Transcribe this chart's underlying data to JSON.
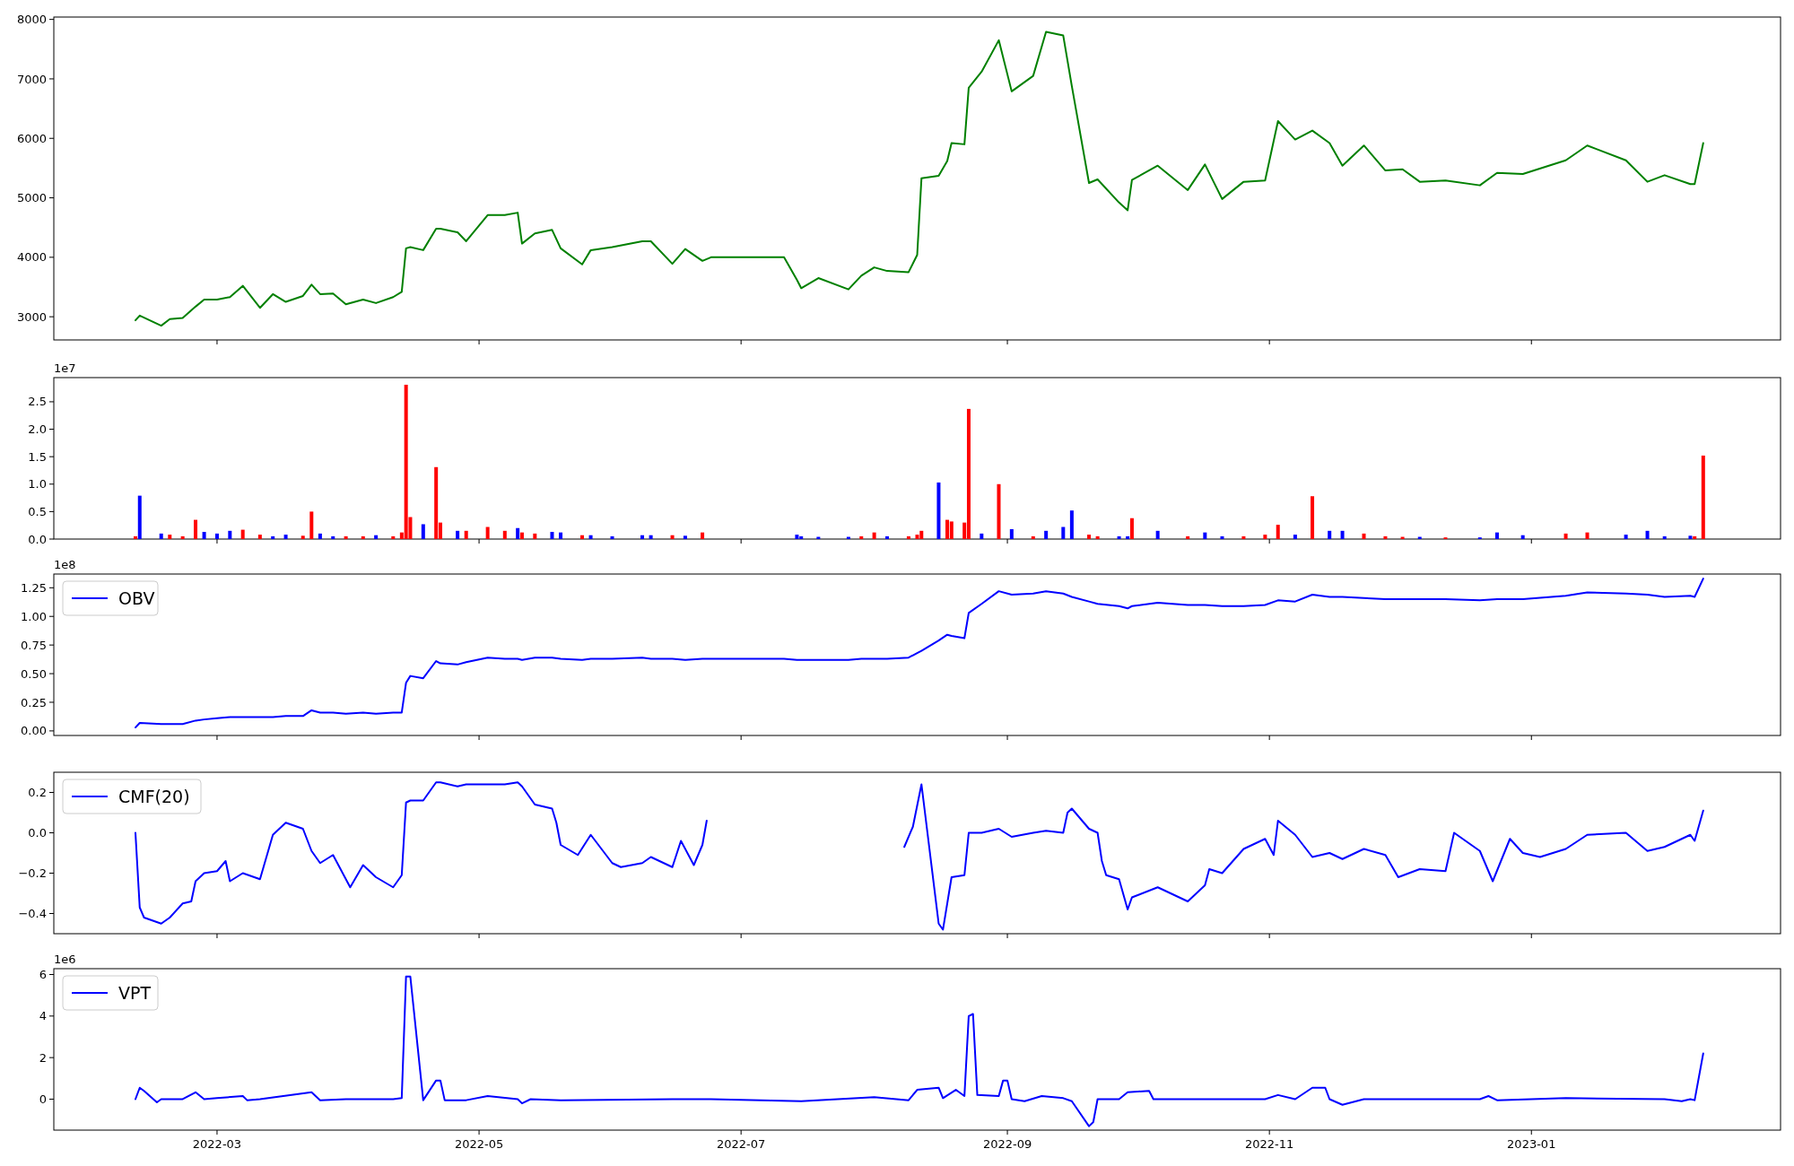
{
  "chart_data": [
    {
      "type": "line",
      "xlim": [
        "2022-01-22",
        "2023-02-28"
      ],
      "xticks": [
        "2022-03-01",
        "2022-05-01",
        "2022-07-01",
        "2022-09-01",
        "2022-11-01",
        "2023-01-01"
      ],
      "ylim": [
        2610,
        8040
      ],
      "yticks": [
        3000,
        4000,
        5000,
        6000,
        7000,
        8000
      ],
      "tick_labels": "y",
      "x": [
        "2022-02-10",
        "2022-02-11",
        "2022-02-16",
        "2022-02-18",
        "2022-02-21",
        "2022-02-24",
        "2022-02-26",
        "2022-03-01",
        "2022-03-04",
        "2022-03-07",
        "2022-03-11",
        "2022-03-14",
        "2022-03-17",
        "2022-03-21",
        "2022-03-23",
        "2022-03-25",
        "2022-03-28",
        "2022-03-31",
        "2022-04-04",
        "2022-04-07",
        "2022-04-11",
        "2022-04-13",
        "2022-04-14",
        "2022-04-15",
        "2022-04-18",
        "2022-04-21",
        "2022-04-22",
        "2022-04-26",
        "2022-04-28",
        "2022-05-03",
        "2022-05-07",
        "2022-05-10",
        "2022-05-11",
        "2022-05-14",
        "2022-05-18",
        "2022-05-20",
        "2022-05-25",
        "2022-05-27",
        "2022-06-01",
        "2022-06-08",
        "2022-06-10",
        "2022-06-15",
        "2022-06-18",
        "2022-06-22",
        "2022-06-24",
        "2022-07-01",
        "2022-07-11",
        "2022-07-14",
        "2022-07-15",
        "2022-07-19",
        "2022-07-26",
        "2022-07-29",
        "2022-08-01",
        "2022-08-04",
        "2022-08-09",
        "2022-08-11",
        "2022-08-12",
        "2022-08-16",
        "2022-08-18",
        "2022-08-19",
        "2022-08-22",
        "2022-08-23",
        "2022-08-26",
        "2022-08-30",
        "2022-09-02",
        "2022-09-07",
        "2022-09-10",
        "2022-09-14",
        "2022-09-16",
        "2022-09-20",
        "2022-09-22",
        "2022-09-27",
        "2022-09-29",
        "2022-09-30",
        "2022-10-06",
        "2022-10-13",
        "2022-10-17",
        "2022-10-21",
        "2022-10-26",
        "2022-10-31",
        "2022-11-03",
        "2022-11-07",
        "2022-11-11",
        "2022-11-15",
        "2022-11-18",
        "2022-11-23",
        "2022-11-28",
        "2022-12-02",
        "2022-12-06",
        "2022-12-12",
        "2022-12-20",
        "2022-12-24",
        "2022-12-30",
        "2023-01-09",
        "2023-01-14",
        "2023-01-23",
        "2023-01-28",
        "2023-02-01",
        "2023-02-07",
        "2023-02-08",
        "2023-02-10"
      ],
      "series": [
        {
          "color": "#008000",
          "values": [
            2940,
            3020,
            2850,
            2960,
            2980,
            3170,
            3290,
            3290,
            3330,
            3520,
            3150,
            3380,
            3250,
            3350,
            3540,
            3380,
            3390,
            3210,
            3290,
            3230,
            3330,
            3420,
            4150,
            4170,
            4120,
            4480,
            4480,
            4420,
            4270,
            4710,
            4710,
            4750,
            4230,
            4400,
            4460,
            4150,
            3880,
            4120,
            4170,
            4270,
            4270,
            3890,
            4140,
            3940,
            4000,
            4000,
            4000,
            3620,
            3480,
            3650,
            3460,
            3690,
            3830,
            3770,
            3750,
            4040,
            5330,
            5370,
            5620,
            5920,
            5900,
            6850,
            7120,
            7650,
            6790,
            7050,
            7790,
            7730,
            6880,
            5250,
            5310,
            4920,
            4790,
            5300,
            5540,
            5130,
            5560,
            4980,
            5270,
            5290,
            6290,
            5980,
            6130,
            5920,
            5540,
            5880,
            5460,
            5480,
            5270,
            5290,
            5210,
            5420,
            5400,
            5630,
            5880,
            5630,
            5270,
            5380,
            5230,
            5230,
            5920
          ]
        }
      ]
    },
    {
      "type": "bar",
      "annotations": [
        "1e7"
      ],
      "xlim": [
        "2022-01-22",
        "2023-02-28"
      ],
      "xticks": [
        "2022-03-01",
        "2022-05-01",
        "2022-07-01",
        "2022-09-01",
        "2022-11-01",
        "2023-01-01"
      ],
      "ylim": [
        0,
        2.94
      ],
      "yticks": [
        {
          "value": 0,
          "label": "0.0"
        },
        {
          "value": 0.5,
          "label": "0.5"
        },
        {
          "value": 1,
          "label": "1.0"
        },
        {
          "value": 1.5,
          "label": "1.5"
        },
        {
          "value": 2,
          "label": "2.0"
        },
        {
          "value": 2.5,
          "label": "2.5"
        }
      ],
      "tick_labels": "y",
      "x": [
        "2022-02-10",
        "2022-02-11",
        "2022-02-16",
        "2022-02-18",
        "2022-02-21",
        "2022-02-24",
        "2022-02-26",
        "2022-03-01",
        "2022-03-04",
        "2022-03-07",
        "2022-03-11",
        "2022-03-14",
        "2022-03-17",
        "2022-03-21",
        "2022-03-23",
        "2022-03-25",
        "2022-03-28",
        "2022-03-31",
        "2022-04-04",
        "2022-04-07",
        "2022-04-11",
        "2022-04-13",
        "2022-04-14",
        "2022-04-15",
        "2022-04-18",
        "2022-04-21",
        "2022-04-22",
        "2022-04-26",
        "2022-04-28",
        "2022-05-03",
        "2022-05-07",
        "2022-05-10",
        "2022-05-11",
        "2022-05-14",
        "2022-05-18",
        "2022-05-20",
        "2022-05-25",
        "2022-05-27",
        "2022-06-01",
        "2022-06-08",
        "2022-06-10",
        "2022-06-15",
        "2022-06-18",
        "2022-06-22",
        "2022-07-14",
        "2022-07-15",
        "2022-07-19",
        "2022-07-26",
        "2022-07-29",
        "2022-08-01",
        "2022-08-04",
        "2022-08-09",
        "2022-08-11",
        "2022-08-12",
        "2022-08-16",
        "2022-08-18",
        "2022-08-19",
        "2022-08-22",
        "2022-08-23",
        "2022-08-26",
        "2022-08-30",
        "2022-09-02",
        "2022-09-07",
        "2022-09-10",
        "2022-09-14",
        "2022-09-16",
        "2022-09-20",
        "2022-09-22",
        "2022-09-27",
        "2022-09-29",
        "2022-09-30",
        "2022-10-06",
        "2022-10-13",
        "2022-10-17",
        "2022-10-21",
        "2022-10-26",
        "2022-10-31",
        "2022-11-03",
        "2022-11-07",
        "2022-11-11",
        "2022-11-15",
        "2022-11-18",
        "2022-11-23",
        "2022-11-28",
        "2022-12-02",
        "2022-12-06",
        "2022-12-12",
        "2022-12-20",
        "2022-12-24",
        "2022-12-30",
        "2023-01-09",
        "2023-01-14",
        "2023-01-23",
        "2023-01-28",
        "2023-02-01",
        "2023-02-07",
        "2023-02-08",
        "2023-02-10"
      ],
      "values": [
        0.05,
        0.79,
        0.1,
        0.08,
        0.05,
        0.35,
        0.13,
        0.1,
        0.15,
        0.17,
        0.08,
        0.05,
        0.08,
        0.06,
        0.5,
        0.1,
        0.05,
        0.05,
        0.05,
        0.07,
        0.05,
        0.12,
        2.81,
        0.4,
        0.27,
        1.31,
        0.3,
        0.15,
        0.15,
        0.22,
        0.15,
        0.2,
        0.12,
        0.1,
        0.13,
        0.12,
        0.07,
        0.07,
        0.05,
        0.07,
        0.07,
        0.07,
        0.06,
        0.12,
        0.08,
        0.05,
        0.04,
        0.04,
        0.05,
        0.12,
        0.05,
        0.05,
        0.08,
        0.15,
        1.03,
        0.35,
        0.32,
        0.3,
        2.37,
        0.1,
        1.0,
        0.18,
        0.05,
        0.15,
        0.22,
        0.52,
        0.08,
        0.05,
        0.05,
        0.05,
        0.38,
        0.15,
        0.05,
        0.12,
        0.05,
        0.05,
        0.08,
        0.26,
        0.08,
        0.78,
        0.15,
        0.15,
        0.1,
        0.05,
        0.04,
        0.04,
        0.03,
        0.03,
        0.12,
        0.07,
        0.1,
        0.12,
        0.08,
        0.15,
        0.05,
        0.06,
        0.05,
        1.52
      ],
      "colors": [
        "#ff0000",
        "#0000ff",
        "#0000ff",
        "#ff0000",
        "#ff0000",
        "#ff0000",
        "#0000ff",
        "#0000ff",
        "#0000ff",
        "#ff0000",
        "#ff0000",
        "#0000ff",
        "#0000ff",
        "#ff0000",
        "#ff0000",
        "#0000ff",
        "#0000ff",
        "#ff0000",
        "#ff0000",
        "#0000ff",
        "#ff0000",
        "#ff0000",
        "#ff0000",
        "#ff0000",
        "#0000ff",
        "#ff0000",
        "#ff0000",
        "#0000ff",
        "#ff0000",
        "#ff0000",
        "#ff0000",
        "#0000ff",
        "#ff0000",
        "#ff0000",
        "#0000ff",
        "#0000ff",
        "#ff0000",
        "#0000ff",
        "#0000ff",
        "#0000ff",
        "#0000ff",
        "#ff0000",
        "#0000ff",
        "#ff0000",
        "#0000ff",
        "#0000ff",
        "#0000ff",
        "#0000ff",
        "#ff0000",
        "#ff0000",
        "#0000ff",
        "#ff0000",
        "#ff0000",
        "#ff0000",
        "#0000ff",
        "#ff0000",
        "#ff0000",
        "#ff0000",
        "#ff0000",
        "#0000ff",
        "#ff0000",
        "#0000ff",
        "#ff0000",
        "#0000ff",
        "#0000ff",
        "#0000ff",
        "#ff0000",
        "#ff0000",
        "#0000ff",
        "#0000ff",
        "#ff0000",
        "#0000ff",
        "#ff0000",
        "#0000ff",
        "#0000ff",
        "#ff0000",
        "#ff0000",
        "#ff0000",
        "#0000ff",
        "#ff0000",
        "#0000ff",
        "#0000ff",
        "#ff0000",
        "#ff0000",
        "#ff0000",
        "#0000ff",
        "#ff0000",
        "#0000ff",
        "#0000ff",
        "#0000ff",
        "#ff0000",
        "#ff0000",
        "#0000ff",
        "#0000ff",
        "#0000ff",
        "#0000ff",
        "#ff0000",
        "#ff0000"
      ]
    },
    {
      "type": "line",
      "annotations": [
        "1e8"
      ],
      "legend": "top left",
      "xlim": [
        "2022-01-22",
        "2023-02-28"
      ],
      "xticks": [
        "2022-03-01",
        "2022-05-01",
        "2022-07-01",
        "2022-09-01",
        "2022-11-01",
        "2023-01-01"
      ],
      "ylim": [
        -0.04,
        1.37
      ],
      "yticks": [
        {
          "value": 0,
          "label": "0.00"
        },
        {
          "value": 0.25,
          "label": "0.25"
        },
        {
          "value": 0.5,
          "label": "0.50"
        },
        {
          "value": 0.75,
          "label": "0.75"
        },
        {
          "value": 1,
          "label": "1.00"
        },
        {
          "value": 1.25,
          "label": "1.25"
        }
      ],
      "tick_labels": "y",
      "x": [
        "2022-02-10",
        "2022-02-11",
        "2022-02-16",
        "2022-02-18",
        "2022-02-21",
        "2022-02-24",
        "2022-02-26",
        "2022-03-01",
        "2022-03-04",
        "2022-03-07",
        "2022-03-11",
        "2022-03-14",
        "2022-03-17",
        "2022-03-21",
        "2022-03-23",
        "2022-03-25",
        "2022-03-28",
        "2022-03-31",
        "2022-04-04",
        "2022-04-07",
        "2022-04-11",
        "2022-04-13",
        "2022-04-14",
        "2022-04-15",
        "2022-04-18",
        "2022-04-21",
        "2022-04-22",
        "2022-04-26",
        "2022-04-28",
        "2022-05-03",
        "2022-05-07",
        "2022-05-10",
        "2022-05-11",
        "2022-05-14",
        "2022-05-18",
        "2022-05-20",
        "2022-05-25",
        "2022-05-27",
        "2022-06-01",
        "2022-06-08",
        "2022-06-10",
        "2022-06-15",
        "2022-06-18",
        "2022-06-22",
        "2022-06-24",
        "2022-07-01",
        "2022-07-11",
        "2022-07-14",
        "2022-07-15",
        "2022-07-19",
        "2022-07-26",
        "2022-07-29",
        "2022-08-01",
        "2022-08-04",
        "2022-08-09",
        "2022-08-11",
        "2022-08-12",
        "2022-08-16",
        "2022-08-18",
        "2022-08-19",
        "2022-08-22",
        "2022-08-23",
        "2022-08-26",
        "2022-08-30",
        "2022-09-02",
        "2022-09-07",
        "2022-09-10",
        "2022-09-14",
        "2022-09-16",
        "2022-09-20",
        "2022-09-22",
        "2022-09-27",
        "2022-09-29",
        "2022-09-30",
        "2022-10-06",
        "2022-10-13",
        "2022-10-17",
        "2022-10-21",
        "2022-10-26",
        "2022-10-31",
        "2022-11-03",
        "2022-11-07",
        "2022-11-11",
        "2022-11-15",
        "2022-11-18",
        "2022-11-23",
        "2022-11-28",
        "2022-12-02",
        "2022-12-06",
        "2022-12-12",
        "2022-12-20",
        "2022-12-24",
        "2022-12-30",
        "2023-01-09",
        "2023-01-14",
        "2023-01-23",
        "2023-01-28",
        "2023-02-01",
        "2023-02-07",
        "2023-02-08",
        "2023-02-10"
      ],
      "series": [
        {
          "name": "OBV",
          "color": "#0000ff",
          "values": [
            0.03,
            0.07,
            0.06,
            0.06,
            0.06,
            0.09,
            0.1,
            0.11,
            0.12,
            0.12,
            0.12,
            0.12,
            0.13,
            0.13,
            0.18,
            0.16,
            0.16,
            0.15,
            0.16,
            0.15,
            0.16,
            0.16,
            0.42,
            0.48,
            0.46,
            0.61,
            0.59,
            0.58,
            0.6,
            0.64,
            0.63,
            0.63,
            0.62,
            0.64,
            0.64,
            0.63,
            0.62,
            0.63,
            0.63,
            0.64,
            0.63,
            0.63,
            0.62,
            0.63,
            0.63,
            0.63,
            0.63,
            0.62,
            0.62,
            0.62,
            0.62,
            0.63,
            0.63,
            0.63,
            0.64,
            0.68,
            0.7,
            0.79,
            0.84,
            0.83,
            0.81,
            1.03,
            1.11,
            1.22,
            1.19,
            1.2,
            1.22,
            1.2,
            1.17,
            1.13,
            1.11,
            1.09,
            1.07,
            1.09,
            1.12,
            1.1,
            1.1,
            1.09,
            1.09,
            1.1,
            1.14,
            1.13,
            1.19,
            1.17,
            1.17,
            1.16,
            1.15,
            1.15,
            1.15,
            1.15,
            1.14,
            1.15,
            1.15,
            1.18,
            1.21,
            1.2,
            1.19,
            1.17,
            1.18,
            1.17,
            1.33
          ]
        }
      ]
    },
    {
      "type": "line",
      "legend": "top left",
      "xlim": [
        "2022-01-22",
        "2023-02-28"
      ],
      "xticks": [
        "2022-03-01",
        "2022-05-01",
        "2022-07-01",
        "2022-09-01",
        "2022-11-01",
        "2023-01-01"
      ],
      "ylim": [
        -0.5,
        0.3
      ],
      "yticks": [
        {
          "value": -0.4,
          "label": "−0.4"
        },
        {
          "value": -0.2,
          "label": "−0.2"
        },
        {
          "value": 0,
          "label": "0.0"
        },
        {
          "value": 0.2,
          "label": "0.2"
        }
      ],
      "tick_labels": "y",
      "x": [
        "2022-02-10",
        "2022-02-11",
        "2022-02-12",
        "2022-02-16",
        "2022-02-18",
        "2022-02-21",
        "2022-02-23",
        "2022-02-24",
        "2022-02-26",
        "2022-03-01",
        "2022-03-03",
        "2022-03-04",
        "2022-03-07",
        "2022-03-11",
        "2022-03-14",
        "2022-03-17",
        "2022-03-21",
        "2022-03-23",
        "2022-03-25",
        "2022-03-28",
        "2022-04-01",
        "2022-04-04",
        "2022-04-07",
        "2022-04-11",
        "2022-04-13",
        "2022-04-14",
        "2022-04-15",
        "2022-04-18",
        "2022-04-21",
        "2022-04-22",
        "2022-04-26",
        "2022-04-28",
        "2022-05-03",
        "2022-05-07",
        "2022-05-10",
        "2022-05-11",
        "2022-05-14",
        "2022-05-18",
        "2022-05-19",
        "2022-05-20",
        "2022-05-24",
        "2022-05-27",
        "2022-06-01",
        "2022-06-03",
        "2022-06-08",
        "2022-06-10",
        "2022-06-15",
        "2022-06-17",
        "2022-06-20",
        "2022-06-22",
        "2022-06-23",
        "2022-07-01",
        "2022-08-08",
        "2022-08-10",
        "2022-08-12",
        "2022-08-16",
        "2022-08-17",
        "2022-08-19",
        "2022-08-22",
        "2022-08-23",
        "2022-08-26",
        "2022-08-30",
        "2022-09-02",
        "2022-09-07",
        "2022-09-10",
        "2022-09-14",
        "2022-09-15",
        "2022-09-16",
        "2022-09-20",
        "2022-09-22",
        "2022-09-23",
        "2022-09-24",
        "2022-09-27",
        "2022-09-29",
        "2022-09-30",
        "2022-10-06",
        "2022-10-13",
        "2022-10-17",
        "2022-10-18",
        "2022-10-21",
        "2022-10-26",
        "2022-10-31",
        "2022-11-02",
        "2022-11-03",
        "2022-11-07",
        "2022-11-11",
        "2022-11-15",
        "2022-11-18",
        "2022-11-23",
        "2022-11-28",
        "2022-12-01",
        "2022-12-06",
        "2022-12-12",
        "2022-12-14",
        "2022-12-20",
        "2022-12-23",
        "2022-12-27",
        "2022-12-30",
        "2023-01-03",
        "2023-01-09",
        "2023-01-14",
        "2023-01-23",
        "2023-01-28",
        "2023-02-01",
        "2023-02-07",
        "2023-02-08",
        "2023-02-10"
      ],
      "series": [
        {
          "name": "CMF(20)",
          "color": "#0000ff",
          "values": [
            0,
            -0.37,
            -0.42,
            -0.45,
            -0.42,
            -0.35,
            -0.34,
            -0.24,
            -0.2,
            -0.19,
            -0.14,
            -0.24,
            -0.2,
            -0.23,
            -0.01,
            0.05,
            0.02,
            -0.09,
            -0.15,
            -0.11,
            -0.27,
            -0.16,
            -0.22,
            -0.27,
            -0.21,
            0.15,
            0.16,
            0.16,
            0.25,
            0.25,
            0.23,
            0.24,
            0.24,
            0.24,
            0.25,
            0.23,
            0.14,
            0.12,
            0.05,
            -0.06,
            -0.11,
            -0.01,
            -0.15,
            -0.17,
            -0.15,
            -0.12,
            -0.17,
            -0.04,
            -0.16,
            -0.06,
            0.06,
            null,
            -0.07,
            0.03,
            0.24,
            -0.45,
            -0.48,
            -0.22,
            -0.21,
            0,
            0,
            0.02,
            -0.02,
            0,
            0.01,
            0,
            0.1,
            0.12,
            0.02,
            0,
            -0.14,
            -0.21,
            -0.23,
            -0.38,
            -0.32,
            -0.27,
            -0.34,
            -0.26,
            -0.18,
            -0.2,
            -0.08,
            -0.03,
            -0.11,
            0.06,
            -0.01,
            -0.12,
            -0.1,
            -0.13,
            -0.08,
            -0.11,
            -0.22,
            -0.18,
            -0.19,
            0,
            -0.09,
            -0.24,
            -0.03,
            -0.1,
            -0.12,
            -0.08,
            -0.01,
            0,
            -0.09,
            -0.07,
            -0.01,
            -0.04,
            0.11
          ]
        }
      ]
    },
    {
      "type": "line",
      "annotations": [
        "1e6"
      ],
      "legend": "top left",
      "xlim": [
        "2022-01-22",
        "2023-02-28"
      ],
      "xticks": [
        {
          "value": "2022-03-01",
          "label": "2022-03"
        },
        {
          "value": "2022-05-01",
          "label": "2022-05"
        },
        {
          "value": "2022-07-01",
          "label": "2022-07"
        },
        {
          "value": "2022-09-01",
          "label": "2022-09"
        },
        {
          "value": "2022-11-01",
          "label": "2022-11"
        },
        {
          "value": "2023-01-01",
          "label": "2023-01"
        }
      ],
      "ylim": [
        -1.49,
        6.28
      ],
      "yticks": [
        0,
        2,
        4,
        6
      ],
      "x": [
        "2022-02-10",
        "2022-02-11",
        "2022-02-12",
        "2022-02-15",
        "2022-02-16",
        "2022-02-18",
        "2022-02-21",
        "2022-02-24",
        "2022-02-26",
        "2022-03-01",
        "2022-03-07",
        "2022-03-08",
        "2022-03-11",
        "2022-03-23",
        "2022-03-25",
        "2022-03-31",
        "2022-04-11",
        "2022-04-13",
        "2022-04-14",
        "2022-04-15",
        "2022-04-18",
        "2022-04-21",
        "2022-04-22",
        "2022-04-23",
        "2022-04-28",
        "2022-05-03",
        "2022-05-10",
        "2022-05-11",
        "2022-05-13",
        "2022-05-20",
        "2022-06-15",
        "2022-06-24",
        "2022-07-15",
        "2022-08-01",
        "2022-08-09",
        "2022-08-11",
        "2022-08-16",
        "2022-08-17",
        "2022-08-20",
        "2022-08-22",
        "2022-08-23",
        "2022-08-24",
        "2022-08-25",
        "2022-08-30",
        "2022-08-31",
        "2022-09-01",
        "2022-09-02",
        "2022-09-05",
        "2022-09-09",
        "2022-09-14",
        "2022-09-16",
        "2022-09-20",
        "2022-09-21",
        "2022-09-22",
        "2022-09-27",
        "2022-09-29",
        "2022-10-04",
        "2022-10-05",
        "2022-10-31",
        "2022-11-03",
        "2022-11-07",
        "2022-11-11",
        "2022-11-14",
        "2022-11-15",
        "2022-11-18",
        "2022-11-23",
        "2022-12-20",
        "2022-12-22",
        "2022-12-24",
        "2023-01-09",
        "2023-02-01",
        "2023-02-05",
        "2023-02-07",
        "2023-02-08",
        "2023-02-10"
      ],
      "series": [
        {
          "name": "VPT",
          "color": "#0000ff",
          "values": [
            0,
            0.55,
            0.4,
            -0.15,
            0,
            0,
            0,
            0.33,
            0,
            0.05,
            0.15,
            -0.05,
            0,
            0.33,
            -0.05,
            0,
            0,
            0.05,
            5.9,
            5.9,
            -0.05,
            0.9,
            0.9,
            -0.05,
            -0.05,
            0.15,
            0,
            -0.2,
            0,
            -0.05,
            0,
            0,
            -0.1,
            0.1,
            -0.05,
            0.45,
            0.55,
            0.05,
            0.45,
            0.15,
            4.0,
            4.1,
            0.2,
            0.15,
            0.9,
            0.9,
            0,
            -0.1,
            0.15,
            0.05,
            -0.1,
            -1.3,
            -1.1,
            0,
            0,
            0.33,
            0.4,
            0,
            0,
            0.2,
            0,
            0.55,
            0.55,
            0,
            -0.27,
            0,
            0,
            0.15,
            -0.05,
            0.05,
            0,
            -0.1,
            0,
            -0.05,
            2.2
          ]
        }
      ]
    }
  ]
}
